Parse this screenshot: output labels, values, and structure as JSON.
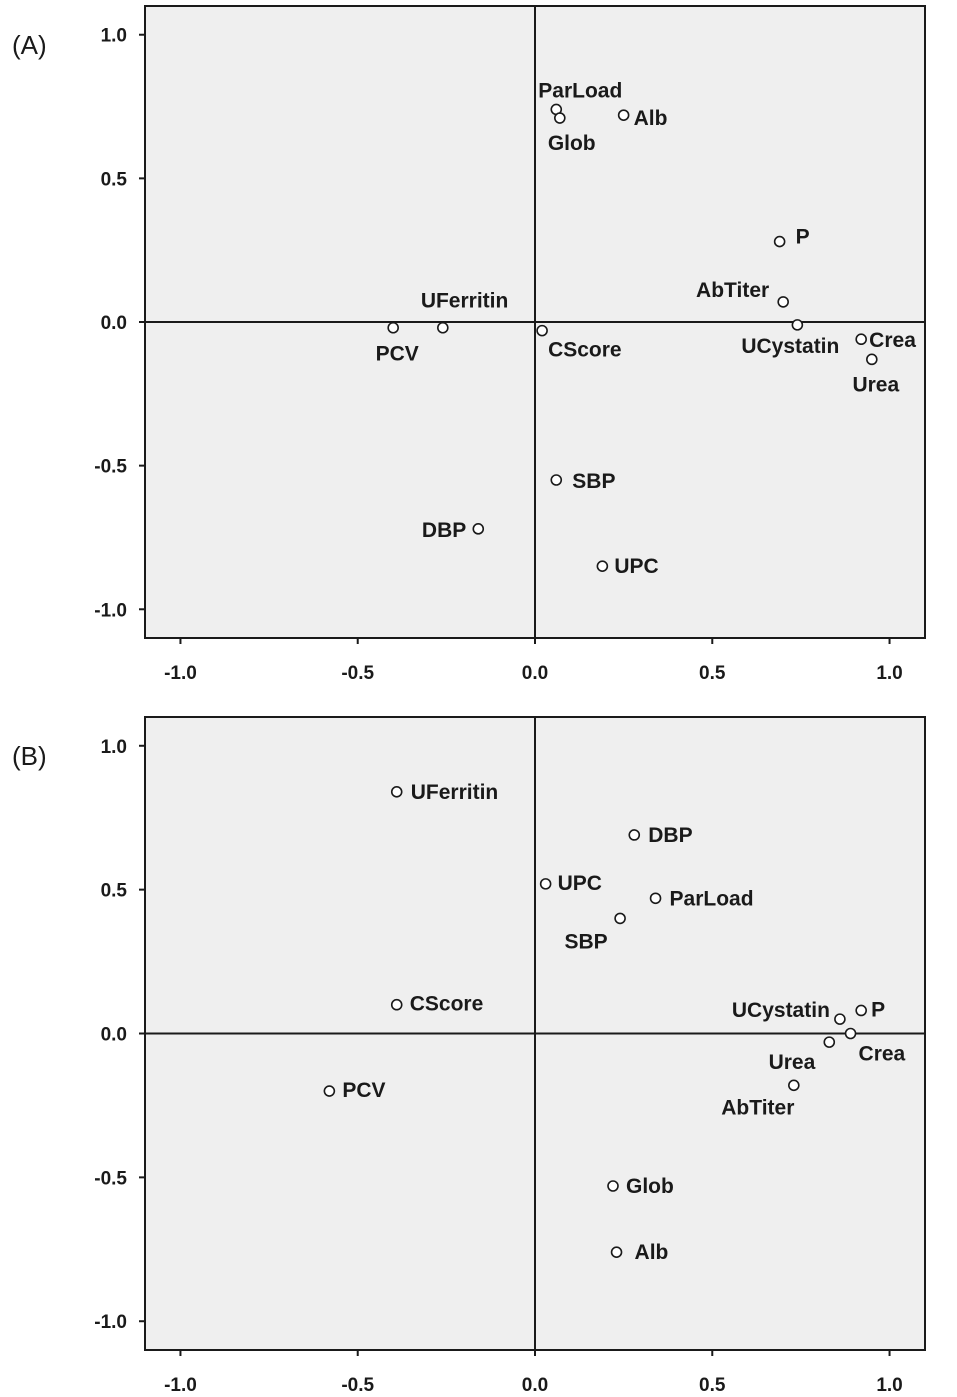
{
  "chart_data": [
    {
      "type": "scatter",
      "panel_label": "(A)",
      "xlim": [
        -1.1,
        1.1
      ],
      "ylim": [
        -1.1,
        1.1
      ],
      "x_ticks": [
        "-1.0",
        "-0.5",
        "0.0",
        "0.5",
        "1.0"
      ],
      "y_ticks": [
        "1.0",
        "0.5",
        "0.0",
        "-0.5",
        "-1.0"
      ],
      "grid": false,
      "reference_lines": "x=0, y=0",
      "points": [
        {
          "label": "ParLoad",
          "x": 0.06,
          "y": 0.74
        },
        {
          "label": "Glob",
          "x": 0.07,
          "y": 0.71
        },
        {
          "label": "Alb",
          "x": 0.25,
          "y": 0.72
        },
        {
          "label": "P",
          "x": 0.69,
          "y": 0.28
        },
        {
          "label": "AbTiter",
          "x": 0.7,
          "y": 0.07
        },
        {
          "label": "UCystatin",
          "x": 0.74,
          "y": -0.01
        },
        {
          "label": "Crea",
          "x": 0.92,
          "y": -0.06
        },
        {
          "label": "Urea",
          "x": 0.95,
          "y": -0.13
        },
        {
          "label": "UFerritin",
          "x": -0.26,
          "y": -0.02
        },
        {
          "label": "PCV",
          "x": -0.4,
          "y": -0.02
        },
        {
          "label": "CScore",
          "x": 0.02,
          "y": -0.03
        },
        {
          "label": "SBP",
          "x": 0.06,
          "y": -0.55
        },
        {
          "label": "DBP",
          "x": -0.16,
          "y": -0.72
        },
        {
          "label": "UPC",
          "x": 0.19,
          "y": -0.85
        }
      ]
    },
    {
      "type": "scatter",
      "panel_label": "(B)",
      "xlim": [
        -1.1,
        1.1
      ],
      "ylim": [
        -1.1,
        1.1
      ],
      "x_ticks": [
        "-1.0",
        "-0.5",
        "0.0",
        "0.5",
        "1.0"
      ],
      "y_ticks": [
        "1.0",
        "0.5",
        "0.0",
        "-0.5",
        "-1.0"
      ],
      "grid": false,
      "reference_lines": "x=0, y=0",
      "points": [
        {
          "label": "UFerritin",
          "x": -0.39,
          "y": 0.84
        },
        {
          "label": "DBP",
          "x": 0.28,
          "y": 0.69
        },
        {
          "label": "UPC",
          "x": 0.03,
          "y": 0.52
        },
        {
          "label": "ParLoad",
          "x": 0.34,
          "y": 0.47
        },
        {
          "label": "SBP",
          "x": 0.24,
          "y": 0.4
        },
        {
          "label": "CScore",
          "x": -0.39,
          "y": 0.1
        },
        {
          "label": "P",
          "x": 0.92,
          "y": 0.08
        },
        {
          "label": "UCystatin",
          "x": 0.86,
          "y": 0.05
        },
        {
          "label": "Crea",
          "x": 0.89,
          "y": 0.0
        },
        {
          "label": "Urea",
          "x": 0.83,
          "y": -0.03
        },
        {
          "label": "AbTiter",
          "x": 0.73,
          "y": -0.18
        },
        {
          "label": "PCV",
          "x": -0.58,
          "y": -0.2
        },
        {
          "label": "Glob",
          "x": 0.22,
          "y": -0.53
        },
        {
          "label": "Alb",
          "x": 0.23,
          "y": -0.76
        }
      ]
    }
  ]
}
